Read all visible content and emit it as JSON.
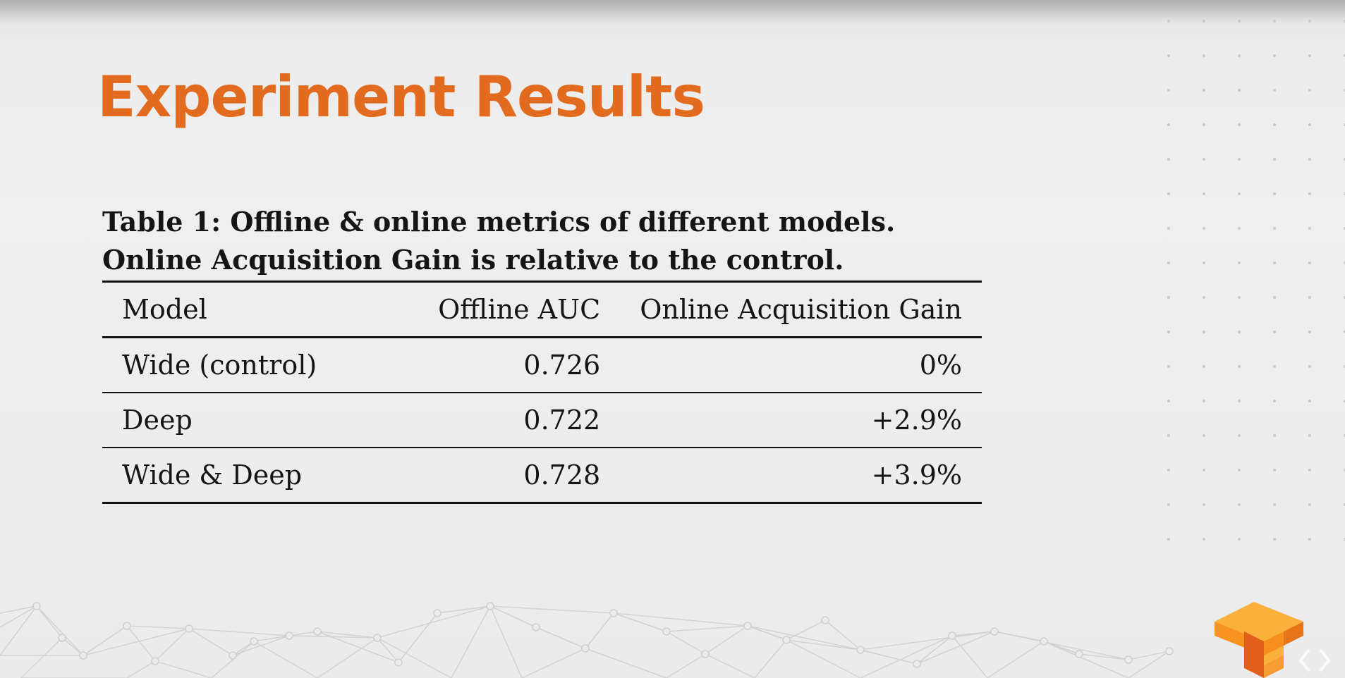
{
  "slide": {
    "title": "Experiment Results",
    "title_color": "#e36b1f"
  },
  "table": {
    "caption_line1": "Table 1: Offline & online metrics of different models.",
    "caption_line2": "Online Acquisition Gain is relative to the control.",
    "headers": {
      "model": "Model",
      "auc": "Offline AUC",
      "gain": "Online Acquisition Gain"
    },
    "rows": [
      {
        "model": "Wide (control)",
        "auc": "0.726",
        "gain": "0%"
      },
      {
        "model": "Deep",
        "auc": "0.722",
        "gain": "+2.9%"
      },
      {
        "model": "Wide & Deep",
        "auc": "0.728",
        "gain": "+3.9%"
      }
    ]
  },
  "decorations": {
    "logo": "tensorflow-logo",
    "logo_color": "#f7931e",
    "corner_mark": "code-brackets-icon"
  }
}
